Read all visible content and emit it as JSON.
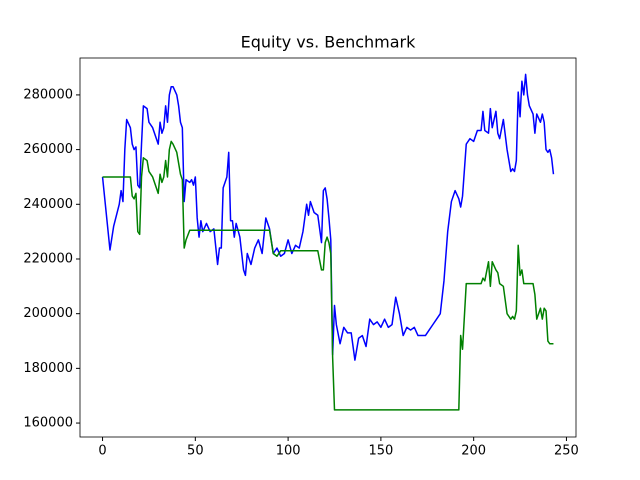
{
  "chart_data": {
    "type": "line",
    "title": "Equity vs. Benchmark",
    "x": [
      0,
      4,
      6,
      9,
      10,
      11,
      12,
      13,
      15,
      16,
      17,
      18,
      19,
      20,
      21,
      22,
      24,
      25,
      27,
      30,
      31,
      32,
      33,
      34,
      35,
      36,
      37,
      38,
      40,
      41,
      42,
      43,
      44,
      45,
      47,
      48,
      49,
      50,
      51,
      52,
      53,
      54,
      56,
      58,
      60,
      62,
      63,
      64,
      65,
      67,
      68,
      69,
      70,
      71,
      72,
      74,
      76,
      77,
      78,
      80,
      82,
      84,
      86,
      88,
      90,
      92,
      94,
      96,
      98,
      100,
      102,
      104,
      106,
      108,
      110,
      111,
      112,
      114,
      116,
      118,
      119,
      120,
      121,
      122,
      123,
      124,
      125,
      126,
      128,
      130,
      132,
      134,
      136,
      138,
      140,
      142,
      144,
      146,
      148,
      150,
      152,
      154,
      156,
      158,
      160,
      162,
      164,
      166,
      168,
      170,
      172,
      174,
      176,
      178,
      180,
      182,
      184,
      186,
      188,
      190,
      192,
      193,
      194,
      196,
      198,
      200,
      202,
      204,
      205,
      206,
      208,
      209,
      210,
      212,
      213,
      214,
      216,
      218,
      220,
      221,
      222,
      223,
      224,
      225,
      226,
      227,
      228,
      229,
      230,
      232,
      233,
      234,
      236,
      237,
      238,
      239,
      240,
      241,
      242,
      243
    ],
    "series": [
      {
        "color": "#0000ff",
        "values": [
          250000,
          223300,
          232000,
          240000,
          245000,
          241000,
          260000,
          271000,
          268000,
          262000,
          260000,
          261000,
          247000,
          246000,
          262000,
          276000,
          275000,
          270000,
          268000,
          262000,
          270000,
          266000,
          268000,
          276000,
          270000,
          280000,
          283000,
          283000,
          280000,
          276000,
          270000,
          268000,
          241000,
          249000,
          248000,
          249000,
          247000,
          250000,
          235000,
          228000,
          234000,
          230000,
          233000,
          230000,
          231000,
          218000,
          224000,
          224000,
          246000,
          250000,
          259000,
          234000,
          234000,
          228000,
          233000,
          228000,
          216000,
          214000,
          222000,
          218000,
          224000,
          227000,
          222000,
          235000,
          231000,
          222000,
          224000,
          221000,
          222000,
          227000,
          222000,
          225000,
          224000,
          230000,
          240000,
          236000,
          241000,
          237000,
          236000,
          226000,
          245000,
          246000,
          242000,
          235000,
          227000,
          185000,
          203000,
          196000,
          189000,
          195000,
          193000,
          193000,
          183000,
          191000,
          192000,
          188000,
          198000,
          196000,
          197000,
          195000,
          198000,
          195000,
          196000,
          206000,
          200000,
          192000,
          195000,
          194000,
          195000,
          192000,
          192000,
          192000,
          194000,
          196000,
          198000,
          200000,
          212000,
          230000,
          241000,
          245000,
          242000,
          239000,
          243000,
          262000,
          264000,
          263000,
          267000,
          267000,
          274000,
          267000,
          266000,
          275000,
          268000,
          274000,
          266000,
          264000,
          271000,
          260000,
          252000,
          253000,
          252000,
          256000,
          281000,
          272000,
          285000,
          280000,
          287500,
          280000,
          276000,
          273000,
          266000,
          273000,
          270000,
          273000,
          270000,
          260000,
          259000,
          260000,
          257000,
          251000
        ]
      },
      {
        "color": "#008000",
        "values": [
          250000,
          250000,
          250000,
          250000,
          250000,
          250000,
          250000,
          250000,
          250000,
          243000,
          242000,
          244000,
          230000,
          229000,
          250000,
          257000,
          256000,
          252000,
          250000,
          244000,
          251000,
          248000,
          250000,
          256000,
          250000,
          260000,
          263000,
          262000,
          259000,
          255000,
          251000,
          249000,
          224000,
          227000,
          230500,
          230500,
          230500,
          230500,
          230500,
          230500,
          230500,
          230500,
          230500,
          230500,
          230500,
          230500,
          230500,
          230500,
          230500,
          230500,
          230500,
          230500,
          230500,
          230500,
          230500,
          230500,
          230500,
          230500,
          230500,
          230500,
          230500,
          230500,
          230500,
          230500,
          230500,
          222000,
          221000,
          223000,
          223000,
          223000,
          223000,
          223000,
          223000,
          223000,
          223000,
          223000,
          223000,
          223000,
          223000,
          216000,
          216000,
          226000,
          228000,
          226000,
          222000,
          184000,
          164800,
          164800,
          164800,
          164800,
          164800,
          164800,
          164800,
          164800,
          164800,
          164800,
          164800,
          164800,
          164800,
          164800,
          164800,
          164800,
          164800,
          164800,
          164800,
          164800,
          164800,
          164800,
          164800,
          164800,
          164800,
          164800,
          164800,
          164800,
          164800,
          164800,
          164800,
          164800,
          164800,
          164800,
          164800,
          192000,
          187000,
          211000,
          211000,
          211000,
          211000,
          211000,
          213000,
          212000,
          219000,
          210000,
          219000,
          216000,
          215000,
          211000,
          210000,
          200000,
          198000,
          199000,
          198000,
          201000,
          225000,
          214000,
          216000,
          211000,
          211000,
          211000,
          211000,
          211000,
          207000,
          198000,
          202000,
          198000,
          202000,
          201000,
          190000,
          189000,
          189000,
          189000
        ]
      }
    ],
    "xlim": [
      -12.15,
      255.15
    ],
    "ylim": [
      154900,
      293500
    ],
    "xticks": [
      0,
      50,
      100,
      150,
      200,
      250
    ],
    "yticks": [
      160000,
      180000,
      200000,
      220000,
      240000,
      260000,
      280000
    ]
  }
}
